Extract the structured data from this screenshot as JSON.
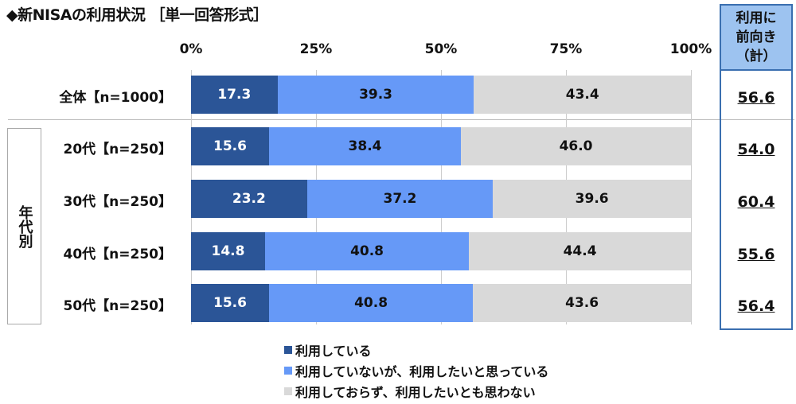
{
  "chart_data": {
    "type": "bar",
    "orientation": "horizontal-stacked-100",
    "title": "◆新NISAの利用状況 ［単一回答形式］",
    "xlim": [
      0,
      100
    ],
    "ticks": [
      "0%",
      "25%",
      "50%",
      "75%",
      "100%"
    ],
    "tick_values": [
      0,
      25,
      50,
      75,
      100
    ],
    "categories": [
      "全体【n=1000】",
      "20代【n=250】",
      "30代【n=250】",
      "40代【n=250】",
      "50代【n=250】"
    ],
    "group_label": "年代別",
    "series": [
      {
        "name": "利用している",
        "color": "#2b5597",
        "text_color": "#ffffff",
        "values": [
          17.3,
          15.6,
          23.2,
          14.8,
          15.6
        ]
      },
      {
        "name": "利用していないが、利用したいと思っている",
        "color": "#6699f7",
        "text_color": "#111111",
        "values": [
          39.3,
          38.4,
          37.2,
          40.8,
          40.8
        ]
      },
      {
        "name": "利用しておらず、利用したいとも思わない",
        "color": "#d9d9d9",
        "text_color": "#111111",
        "values": [
          43.4,
          46.0,
          39.6,
          44.4,
          43.6
        ]
      }
    ],
    "summary": {
      "header": [
        "利用に",
        "前向き",
        "（計）"
      ],
      "values": [
        "56.6",
        "54.0",
        "60.4",
        "55.6",
        "56.4"
      ]
    }
  }
}
